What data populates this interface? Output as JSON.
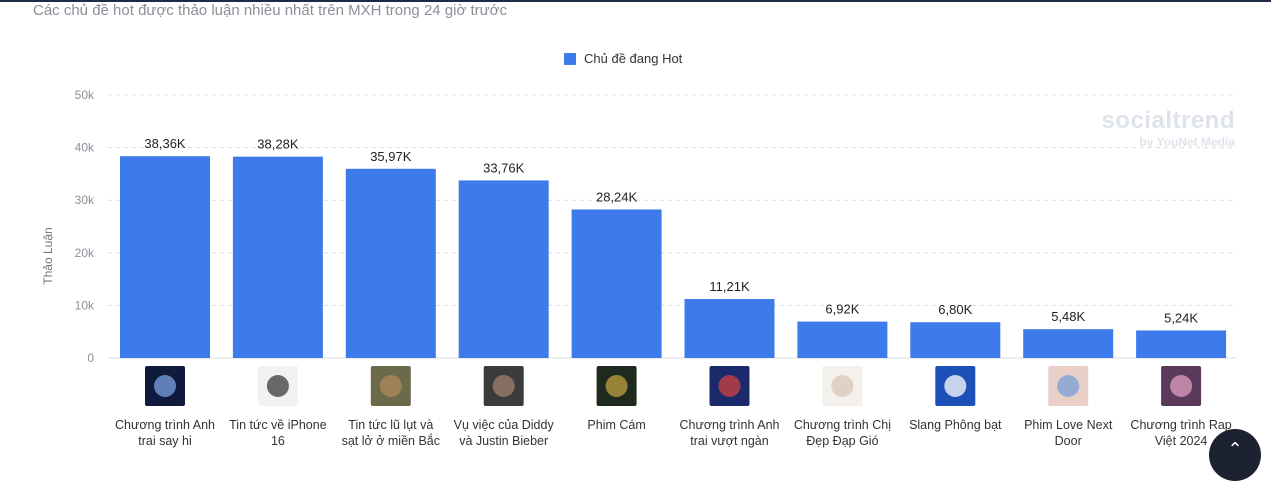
{
  "subtitle": "Các chủ đề hot được thảo luận nhiều nhất trên MXH trong 24 giờ trước",
  "watermark": {
    "brand": "socialtrend",
    "sub": "by YouNet Media"
  },
  "colors": {
    "bar": "#3d7bea",
    "grid": "#d9dce1",
    "axis_text": "#8a8f98",
    "label_text": "#333333"
  },
  "chart_data": {
    "type": "bar",
    "title": "",
    "xlabel": "",
    "ylabel": "Thảo Luận",
    "ylim": [
      0,
      50000
    ],
    "yticks": [
      0,
      10000,
      20000,
      30000,
      40000,
      50000
    ],
    "ytick_labels": [
      "0",
      "10k",
      "20k",
      "30k",
      "40k",
      "50k"
    ],
    "grid": true,
    "legend_position": "top-center",
    "series": [
      {
        "name": "Chủ đề đang Hot",
        "values": [
          38360,
          38280,
          35970,
          33760,
          28240,
          11210,
          6920,
          6800,
          5480,
          5240
        ],
        "data_labels": [
          "38,36K",
          "38,28K",
          "35,97K",
          "33,76K",
          "28,24K",
          "11,21K",
          "6,92K",
          "6,80K",
          "5,48K",
          "5,24K"
        ]
      }
    ],
    "categories": [
      [
        "Chương trình Anh",
        "trai say hi"
      ],
      [
        "Tin tức về iPhone",
        "16"
      ],
      [
        "Tin tức lũ lụt và",
        "sạt lở ở miền Bắc"
      ],
      [
        "Vụ việc của Diddy",
        "và Justin Bieber"
      ],
      [
        "Phim Cám"
      ],
      [
        "Chương trình Anh",
        "trai vượt ngàn"
      ],
      [
        "Chương trình Chị",
        "Đẹp Đạp Gió"
      ],
      [
        "Slang Phông bạt"
      ],
      [
        "Phim Love Next",
        "Door"
      ],
      [
        "Chương trình Rap",
        "Việt 2024"
      ]
    ],
    "thumbnail_colors": [
      [
        "#0f1a3d",
        "#7aa3e0"
      ],
      [
        "#f2f2f2",
        "#3a3a3a"
      ],
      [
        "#6b6a4a",
        "#b08a5a"
      ],
      [
        "#3b3b3b",
        "#a08070"
      ],
      [
        "#1e2a1e",
        "#c0a040"
      ],
      [
        "#1a2a6a",
        "#d04040"
      ],
      [
        "#f4f0ec",
        "#d8c8b8"
      ],
      [
        "#1d4fb8",
        "#ffffff"
      ],
      [
        "#e8d0c8",
        "#7a9fd8"
      ],
      [
        "#5a3a5a",
        "#e0a0c0"
      ]
    ]
  }
}
